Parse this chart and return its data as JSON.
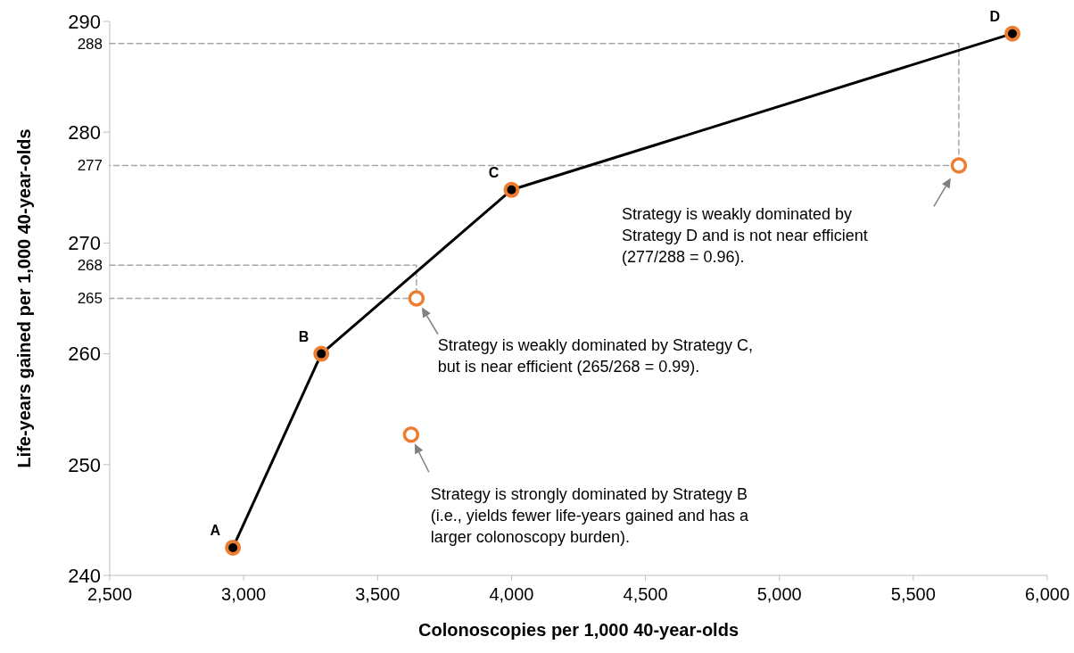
{
  "chart_data": {
    "type": "line",
    "xlabel": "Colonoscopies per 1,000 40-year-olds",
    "ylabel": "Life-years gained per 1,000 40-year-olds",
    "xlim": [
      2500,
      6000
    ],
    "xticks": [
      {
        "value": 2500,
        "label": "2,500"
      },
      {
        "value": 3000,
        "label": "3,000"
      },
      {
        "value": 3500,
        "label": "3,500"
      },
      {
        "value": 4000,
        "label": "4,000"
      },
      {
        "value": 4500,
        "label": "4,500"
      },
      {
        "value": 5000,
        "label": "5,000"
      },
      {
        "value": 5500,
        "label": "5,500"
      },
      {
        "value": 6000,
        "label": "6,000"
      }
    ],
    "ylim": [
      240,
      290
    ],
    "yticks": [
      240,
      250,
      260,
      265,
      268,
      270,
      277,
      280,
      288,
      290
    ],
    "grid": false,
    "series": [
      {
        "color": "#a6a6a6",
        "line_style": "dashed",
        "marker": "none",
        "x": [
          2500,
          5670,
          5670,
          2500
        ],
        "values": [
          288,
          288,
          277,
          277
        ]
      },
      {
        "color": "#a6a6a6",
        "line_style": "dashed",
        "marker": "none",
        "x": [
          2500,
          3645,
          3645,
          2500
        ],
        "values": [
          268,
          268,
          265,
          265
        ]
      },
      {
        "color": "#000000",
        "line_style": "solid",
        "marker": "circle",
        "x": [
          2960,
          3290,
          4000,
          5870
        ],
        "values": [
          242.5,
          260,
          274.8,
          288.9
        ]
      },
      {
        "type": "scatter",
        "color": "#ed7d31",
        "marker": "circle",
        "x": [
          3645,
          3625,
          5670
        ],
        "values": [
          265,
          252.7,
          277
        ]
      }
    ],
    "annotations": [
      {
        "text": "A",
        "x": 2960,
        "y": 242.5
      },
      {
        "text": "B",
        "x": 3290,
        "y": 260
      },
      {
        "text": "C",
        "x": 4000,
        "y": 274.8
      },
      {
        "text": "D",
        "x": 5870,
        "y": 288.9
      },
      "Strategy is weakly dominated by Strategy C,\nbut is near efficient (265/268 = 0.99).",
      "Strategy is strongly dominated by Strategy B\n(i.e., yields fewer life-years gained and has a\nlarger colonoscopy burden).",
      "Strategy is weakly dominated by\nStrategy D and is not near efficient\n(277/288 = 0.96)."
    ]
  }
}
